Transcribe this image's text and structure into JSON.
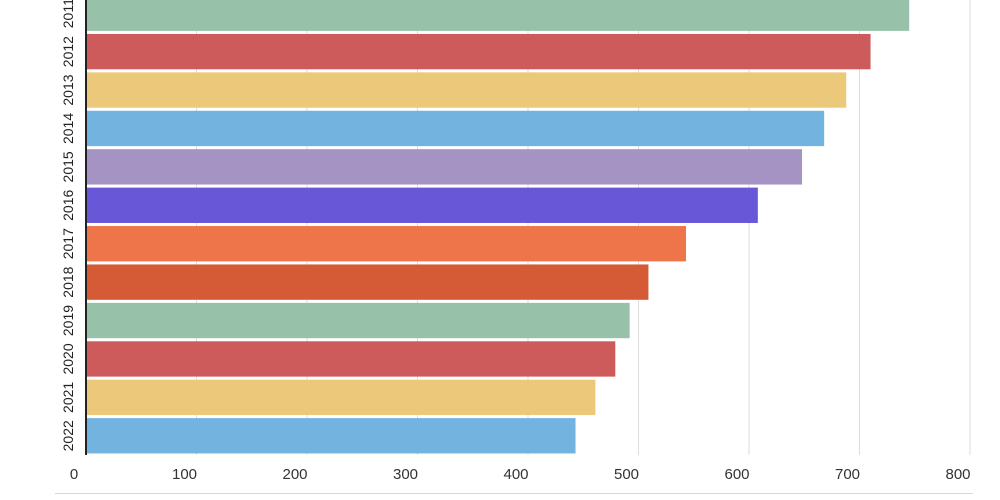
{
  "chart_data": {
    "type": "bar",
    "orientation": "horizontal",
    "categories": [
      "2011",
      "2012",
      "2013",
      "2014",
      "2015",
      "2016",
      "2017",
      "2018",
      "2019",
      "2020",
      "2021",
      "2022"
    ],
    "values": [
      745,
      710,
      688,
      668,
      648,
      608,
      543,
      509,
      492,
      479,
      461,
      443
    ],
    "colors": [
      "#98c1a9",
      "#cd5b5b",
      "#ecc97a",
      "#72b3e0",
      "#a493c3",
      "#6857d6",
      "#ed7549",
      "#d55a36",
      "#98c1a9",
      "#cd5b5b",
      "#ecc97a",
      "#72b3e0"
    ],
    "xticks": [
      0,
      100,
      200,
      300,
      400,
      500,
      600,
      700,
      800
    ],
    "xlim": [
      0,
      800
    ],
    "grid": true,
    "legend": "none",
    "title": "",
    "xlabel": "",
    "ylabel": ""
  }
}
